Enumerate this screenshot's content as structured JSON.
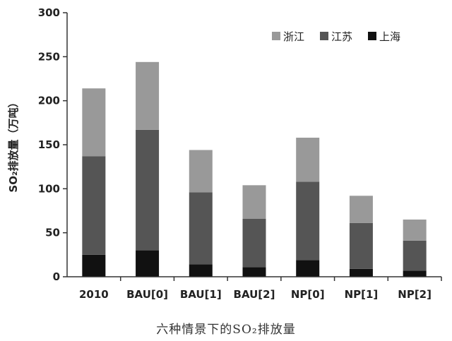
{
  "caption": "六种情景下的SO₂排放量",
  "chart_data": {
    "type": "bar",
    "stacked": true,
    "ylabel": "SO₂排放量（万吨）",
    "ylim": [
      0,
      300
    ],
    "yticks": [
      0,
      50,
      100,
      150,
      200,
      250,
      300
    ],
    "categories": [
      "2010",
      "BAU[0]",
      "BAU[1]",
      "BAU[2]",
      "NP[0]",
      "NP[1]",
      "NP[2]"
    ],
    "series": [
      {
        "name": "上海",
        "color": "#111111",
        "values": [
          25,
          30,
          14,
          11,
          19,
          9,
          7
        ]
      },
      {
        "name": "江苏",
        "color": "#555555",
        "values": [
          112,
          137,
          82,
          55,
          89,
          52,
          34
        ]
      },
      {
        "name": "浙江",
        "color": "#999999",
        "values": [
          77,
          77,
          48,
          38,
          50,
          31,
          24
        ]
      }
    ],
    "legend_order": [
      "浙江",
      "江苏",
      "上海"
    ],
    "legend_position": "top-right",
    "grid": false
  }
}
